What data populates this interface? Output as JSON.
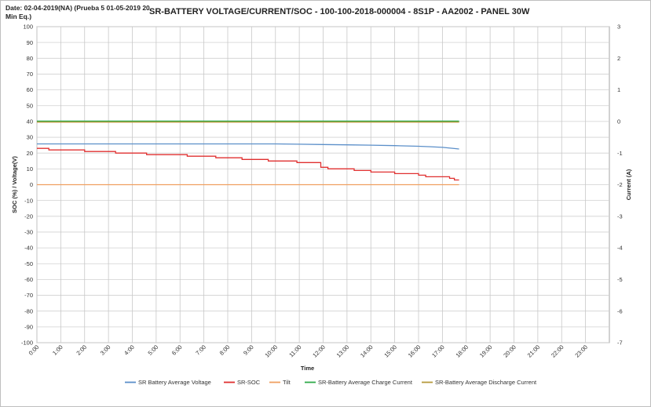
{
  "chart_data": {
    "type": "line",
    "title": "SR-BATTERY VOLTAGE/CURRENT/SOC - 100-100-2018-000004 - 8S1P - AA2002 - PANEL 30W",
    "date_note": "Date: 02-04-2019(NA) (Prueba 5 01-05-2019 20 Min Eq.)",
    "xlabel": "Time",
    "ylabel": "SOC (%) / Voltage(V)",
    "y2label": "Current (A)",
    "ylim": [
      -100,
      100
    ],
    "y2lim": [
      -7,
      3
    ],
    "xlim": [
      0,
      24
    ],
    "y_ticks": [
      "100",
      "90",
      "80",
      "70",
      "60",
      "50",
      "40",
      "30",
      "20",
      "10",
      "0",
      "-10",
      "-20",
      "-30",
      "-40",
      "-50",
      "-60",
      "-70",
      "-80",
      "-90",
      "-100"
    ],
    "y2_ticks": [
      "3",
      "2",
      "1",
      "0",
      "-1",
      "-2",
      "-3",
      "-4",
      "-5",
      "-6",
      "-7"
    ],
    "x_ticks": [
      "0:00",
      "1:00",
      "2:00",
      "3:00",
      "4:00",
      "5:00",
      "6:00",
      "7:00",
      "8:00",
      "9:00",
      "10:00",
      "11:00",
      "12:00",
      "13:00",
      "14:00",
      "15:00",
      "16:00",
      "17:00",
      "18:00",
      "19:00",
      "20:00",
      "21:00",
      "22:00",
      "23:00"
    ],
    "grid": true,
    "legend_position": "bottom",
    "series": [
      {
        "name": "SR Battery Average Voltage",
        "axis": "left",
        "color": "#5b8fc9",
        "x": [
          0,
          2,
          4,
          6,
          8,
          10,
          11,
          12,
          13,
          14,
          15,
          16,
          16.5,
          17,
          17.5,
          17.7
        ],
        "y": [
          25.8,
          25.8,
          25.8,
          25.8,
          25.8,
          25.8,
          25.6,
          25.4,
          25.2,
          25.0,
          24.7,
          24.3,
          24.0,
          23.6,
          22.9,
          22.6
        ]
      },
      {
        "name": "SR-SOC",
        "axis": "left",
        "color": "#e03030",
        "step": true,
        "x": [
          0,
          0.5,
          2,
          3.3,
          4.6,
          6.3,
          7.5,
          8.6,
          9.7,
          10.9,
          11.9,
          12.2,
          13.3,
          14.0,
          15.0,
          16.0,
          16.3,
          17.3,
          17.5,
          17.7
        ],
        "y": [
          23,
          22,
          21,
          20,
          19,
          18,
          17,
          16,
          15,
          14,
          11,
          10,
          9,
          8,
          7,
          6,
          5,
          4,
          3,
          3
        ]
      },
      {
        "name": "Tilt",
        "axis": "left",
        "color": "#f0a060",
        "x": [
          0,
          17.7
        ],
        "y": [
          0,
          0
        ]
      },
      {
        "name": "SR-Battery Average Charge Current",
        "axis": "left",
        "color": "#2eaa4a",
        "x": [
          0,
          17.7
        ],
        "y": [
          40,
          40
        ]
      },
      {
        "name": "SR-Battery Average Discharge Current",
        "axis": "left",
        "color": "#b59a3c",
        "x": [
          0,
          17.7
        ],
        "y": [
          39.6,
          39.6
        ]
      }
    ]
  }
}
